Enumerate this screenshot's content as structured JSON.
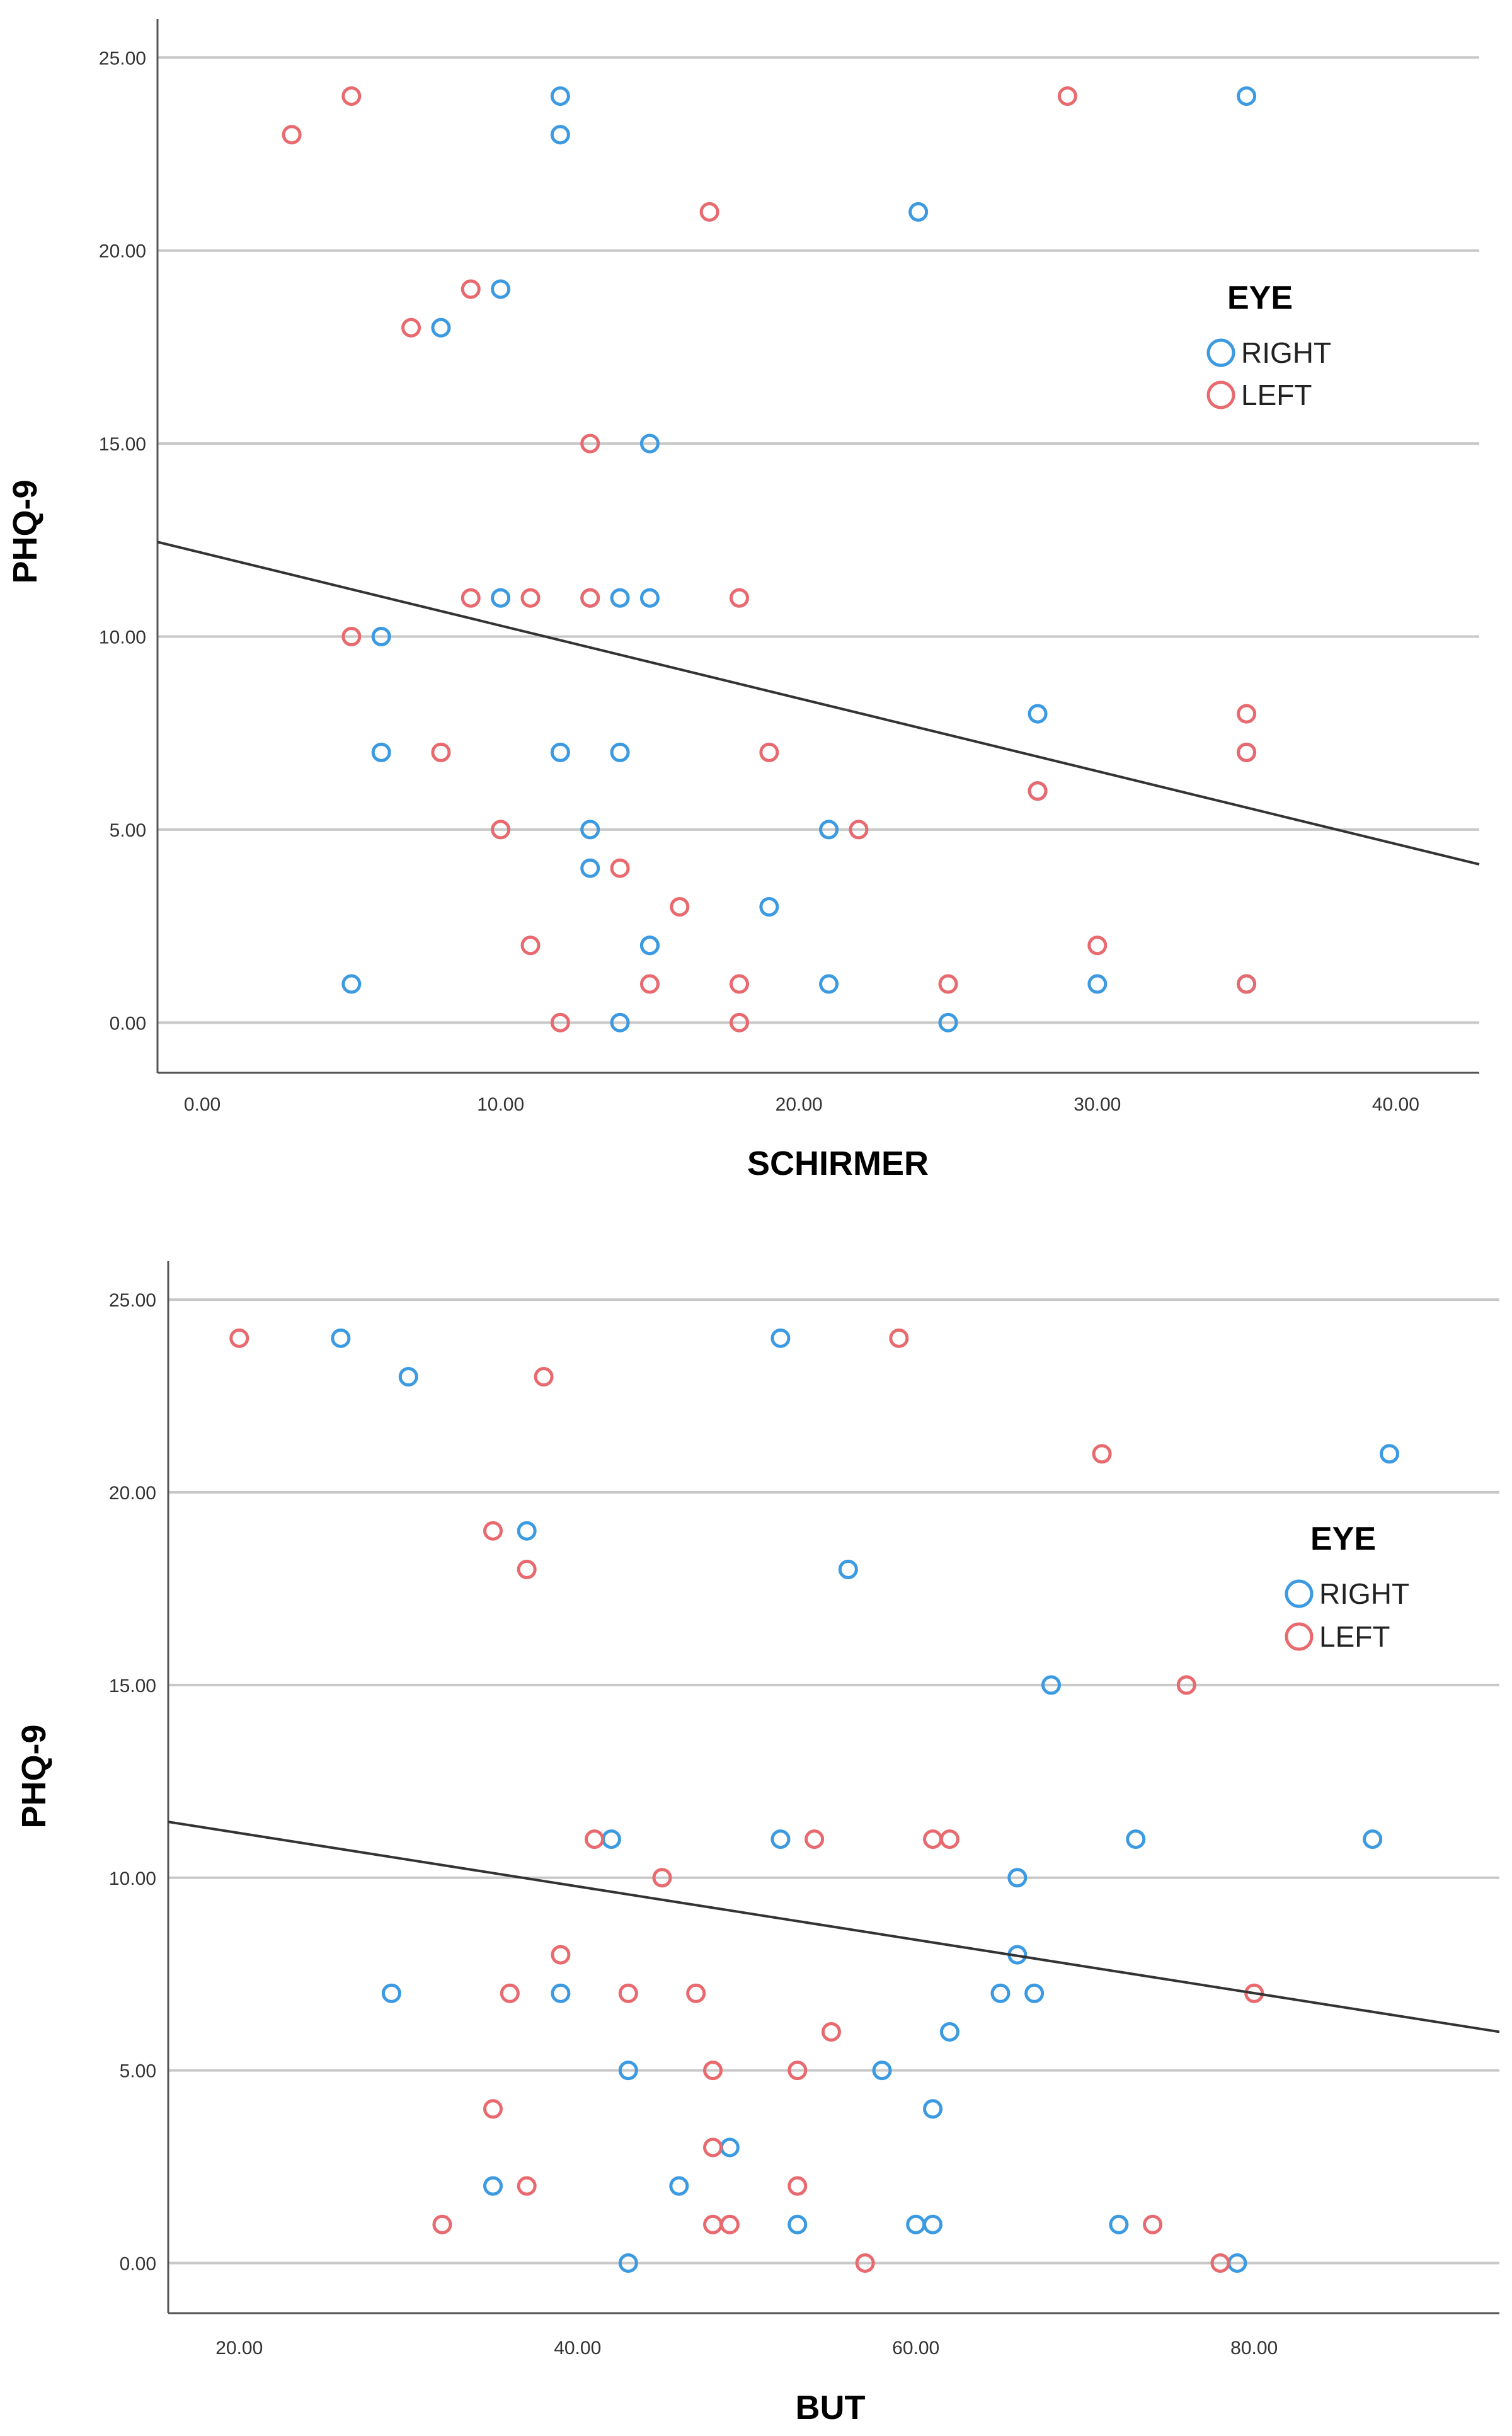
{
  "chart_data": [
    {
      "type": "scatter",
      "title": "",
      "xlabel": "SCHIRMER",
      "ylabel": "PHQ-9",
      "xlim": [
        -1.5,
        42.8
      ],
      "ylim": [
        -1.3,
        26.0
      ],
      "xticks": [
        0,
        10,
        20,
        30,
        40
      ],
      "yticks": [
        0,
        5,
        10,
        15,
        20,
        25
      ],
      "xtick_labels": [
        "0.00",
        "10.00",
        "20.00",
        "30.00",
        "40.00"
      ],
      "ytick_labels": [
        "0.00",
        "5.00",
        "10.00",
        "15.00",
        "20.00",
        "25.00"
      ],
      "grid": "horizontal",
      "legend": {
        "title": "EYE",
        "position": "right",
        "entries": [
          "RIGHT",
          "LEFT"
        ]
      },
      "fit_line": {
        "x": [
          -1.5,
          42.8
        ],
        "y": [
          12.45,
          4.1
        ]
      },
      "series": [
        {
          "name": "RIGHT",
          "color": "#3b9ae1",
          "x": [
            12,
            35,
            12,
            24,
            10,
            8,
            15,
            10,
            13,
            14,
            15,
            6,
            28,
            6,
            12,
            14,
            28,
            21,
            13,
            13,
            19,
            15,
            15,
            5,
            21,
            30,
            35,
            14,
            25,
            35,
            35
          ],
          "y": [
            24,
            24,
            23,
            21,
            19,
            18,
            15,
            11,
            11,
            11,
            11,
            10,
            8,
            7,
            7,
            7,
            6,
            5,
            5,
            4,
            3,
            2,
            2,
            1,
            1,
            1,
            1,
            0,
            0,
            7,
            1
          ]
        },
        {
          "name": "LEFT",
          "color": "#e8696e",
          "x": [
            5,
            29,
            3,
            17,
            9,
            7,
            13,
            9,
            11,
            13,
            18,
            5,
            35,
            8,
            19,
            35,
            28,
            10,
            22,
            14,
            16,
            11,
            30,
            15,
            18,
            25,
            35,
            12,
            18
          ],
          "y": [
            24,
            24,
            23,
            21,
            19,
            18,
            15,
            11,
            11,
            11,
            11,
            10,
            8,
            7,
            7,
            7,
            6,
            5,
            5,
            4,
            3,
            2,
            2,
            1,
            1,
            1,
            1,
            0,
            0
          ]
        }
      ]
    },
    {
      "type": "scatter",
      "title": "",
      "xlabel": "BUT",
      "ylabel": "PHQ-9",
      "xlim": [
        15.8,
        94.5
      ],
      "ylim": [
        -1.3,
        26.0
      ],
      "xticks": [
        20,
        40,
        60,
        80
      ],
      "yticks": [
        0,
        5,
        10,
        15,
        20,
        25
      ],
      "xtick_labels": [
        "20.00",
        "40.00",
        "60.00",
        "80.00"
      ],
      "ytick_labels": [
        "0.00",
        "5.00",
        "10.00",
        "15.00",
        "20.00",
        "25.00"
      ],
      "grid": "horizontal",
      "legend": {
        "title": "EYE",
        "position": "right",
        "entries": [
          "RIGHT",
          "LEFT"
        ]
      },
      "fit_line": {
        "x": [
          15.8,
          94.5
        ],
        "y": [
          11.45,
          6.0
        ]
      },
      "series": [
        {
          "name": "RIGHT",
          "color": "#3b9ae1",
          "x": [
            26,
            52,
            30,
            88,
            37,
            56,
            68,
            42,
            52,
            73,
            87,
            66,
            66,
            29,
            39,
            65,
            67,
            62,
            43,
            58,
            61,
            49,
            35,
            46,
            53,
            60,
            61,
            72,
            43,
            79
          ],
          "y": [
            24,
            24,
            23,
            21,
            19,
            18,
            15,
            11,
            11,
            11,
            11,
            10,
            8,
            7,
            7,
            7,
            7,
            6,
            5,
            5,
            4,
            3,
            2,
            2,
            1,
            1,
            1,
            1,
            0,
            0
          ]
        },
        {
          "name": "LEFT",
          "color": "#e8696e",
          "x": [
            20,
            59,
            38,
            71,
            35,
            37,
            76,
            41,
            54,
            61,
            62,
            45,
            39,
            36,
            43,
            47,
            80,
            55,
            48,
            53,
            35,
            48,
            37,
            53,
            32,
            48,
            49,
            74,
            57,
            78
          ],
          "y": [
            24,
            24,
            23,
            21,
            19,
            18,
            15,
            11,
            11,
            11,
            11,
            10,
            8,
            7,
            7,
            7,
            7,
            6,
            5,
            5,
            4,
            3,
            2,
            2,
            1,
            1,
            1,
            1,
            0,
            0
          ]
        }
      ]
    }
  ]
}
